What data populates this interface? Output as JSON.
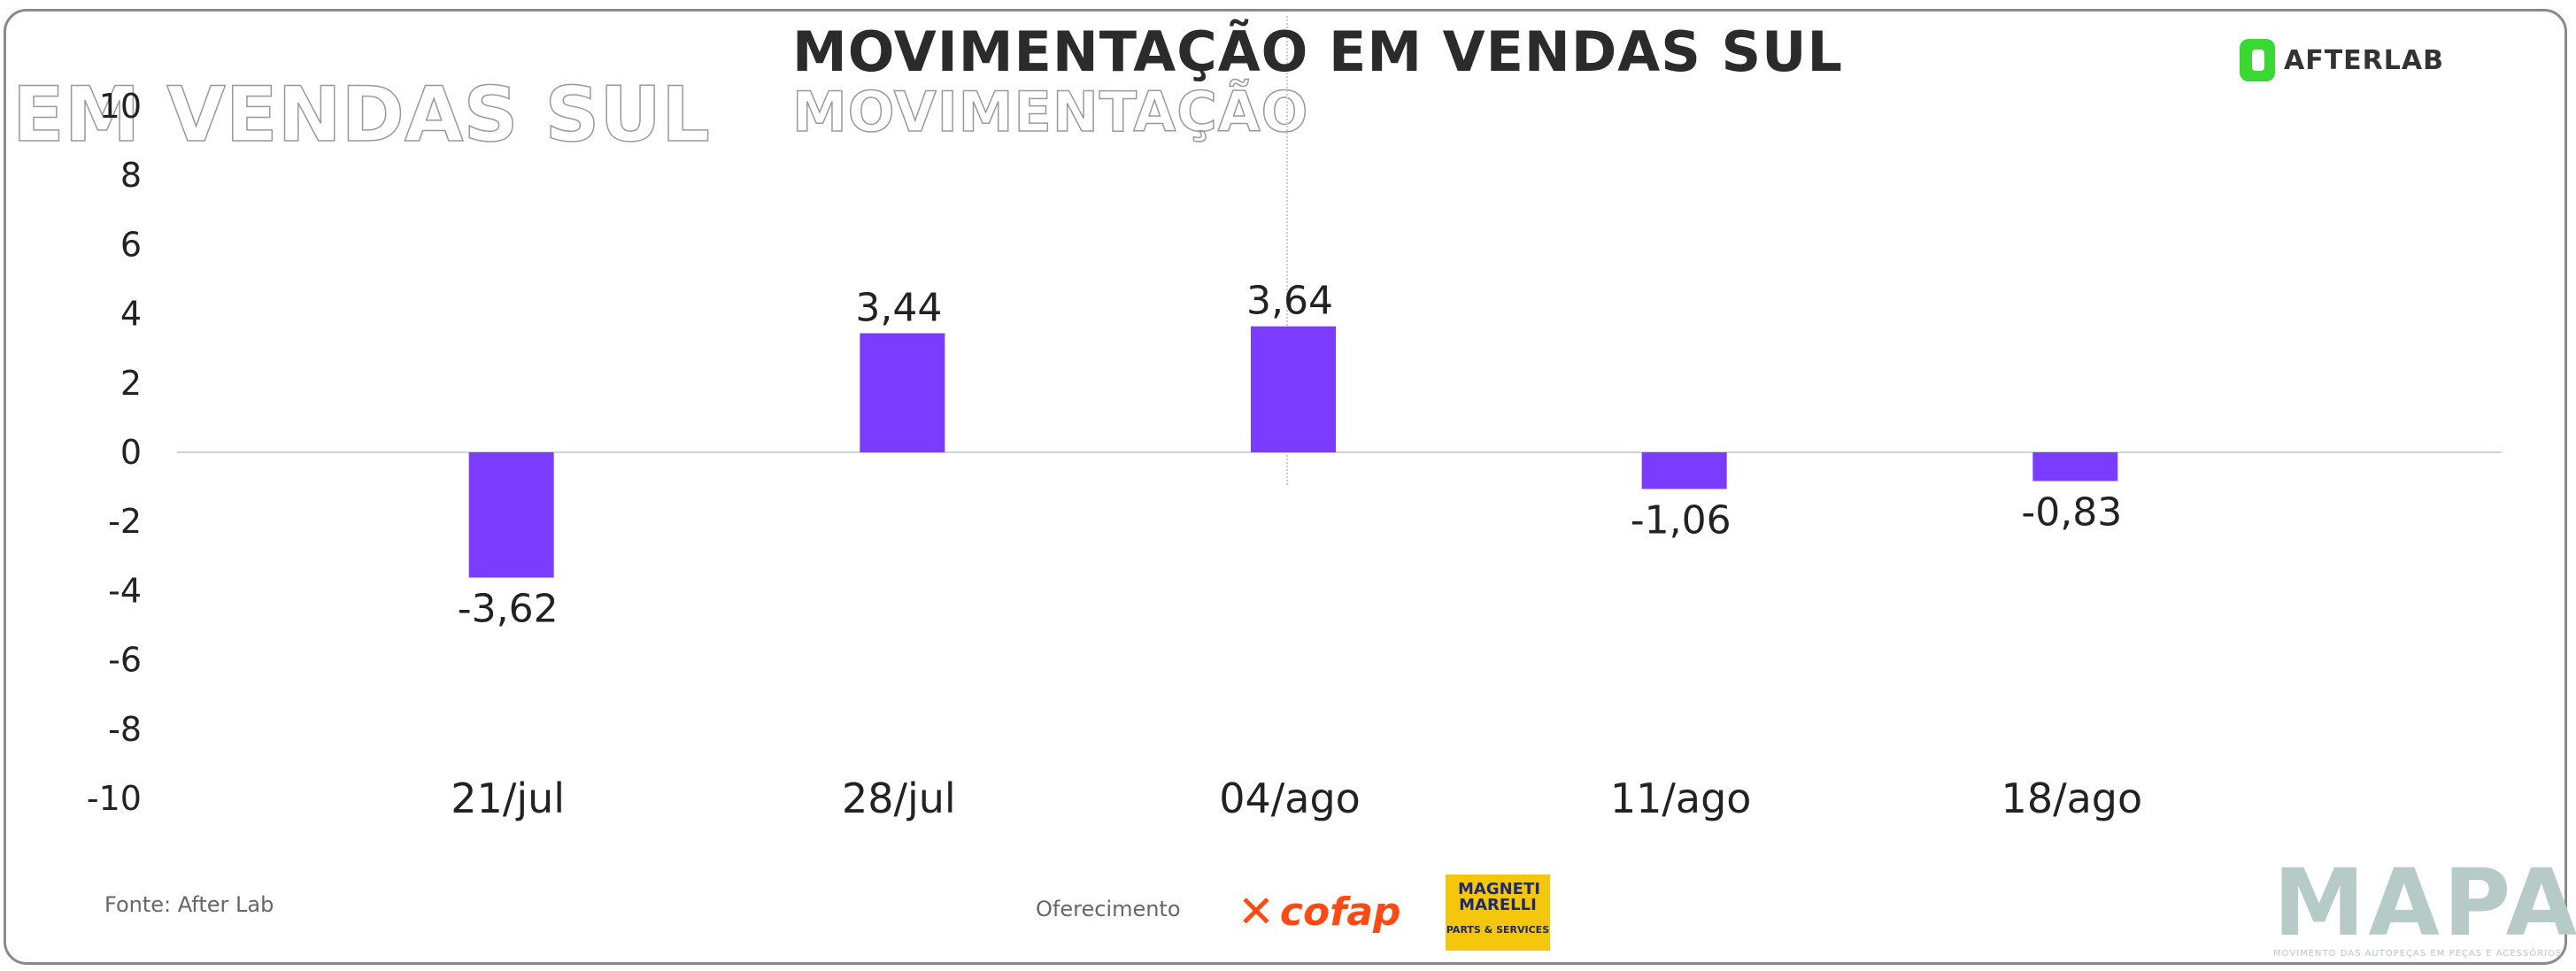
{
  "header": {
    "title": "MOVIMENTAÇÃO EM VENDAS SUL",
    "ghost_title": "MOVIMENTAÇÃO",
    "ghost_left": "EM VENDAS SUL",
    "brand_logo": "AFTERLAB"
  },
  "colors": {
    "bar": "#7c3cff",
    "zero_line": "#c9d6d6",
    "brand_green": "#39d833",
    "cofap_orange": "#ff4a14",
    "magneti_yellow": "#f5c60e",
    "mapa_gray": "#b6cbc7"
  },
  "chart_data": {
    "type": "bar",
    "title": "MOVIMENTAÇÃO EM VENDAS SUL",
    "categories": [
      "21/jul",
      "28/jul",
      "04/ago",
      "11/ago",
      "18/ago"
    ],
    "values": [
      -3.62,
      3.44,
      3.64,
      -1.06,
      -0.83
    ],
    "value_labels": [
      "-3,62",
      "3,44",
      "3,64",
      "-1,06",
      "-0,83"
    ],
    "ylim": [
      -10,
      10
    ],
    "yticks": [
      10,
      8,
      6,
      4,
      2,
      0,
      -2,
      -4,
      -6,
      -8,
      -10
    ],
    "xlabel": "",
    "ylabel": "",
    "grid": false,
    "legend": "none"
  },
  "footer": {
    "source": "Fonte: After Lab",
    "sponsor_label": "Oferecimento",
    "sponsor_1": "cofap",
    "sponsor_2_top": "MAGNETI MARELLI",
    "sponsor_2_bottom": "PARTS & SERVICES",
    "mapa": "MAPA",
    "mapa_sub": "MOVIMENTO DAS AUTOPEÇAS EM PEÇAS E ACESSÓRIOS"
  }
}
